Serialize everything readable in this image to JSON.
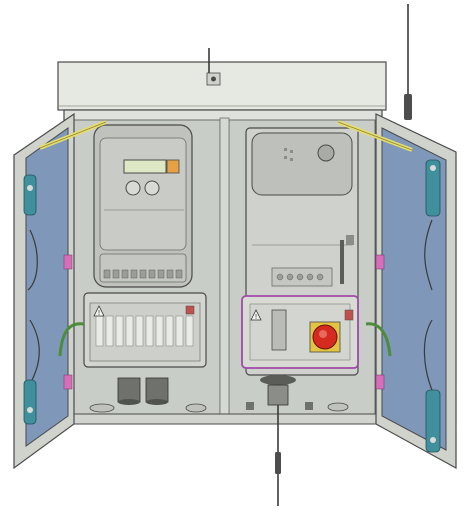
{
  "title": "",
  "warning_symbol": "!",
  "colors": {
    "background": "#ffffff",
    "cabinet_body": "#dfe2dc",
    "cabinet_roof": "#e6e8e2",
    "cabinet_interior": "#c9cdc8",
    "door_panel": "#7f97b8",
    "door_frame": "#cfd3cc",
    "outline": "#4a4a4a",
    "hinge_teal": "#3f8f9c",
    "strap_yellow": "#e6dd6a",
    "strap_green": "#4d8c3a",
    "emergency_red": "#d42a1f",
    "emergency_yellow": "#e2c440",
    "terminal_purple": "#a04aa8"
  },
  "components": {
    "left_bay": "electricity-meter-with-terminal-block",
    "right_bay": "control-module-with-emergency-stop",
    "antennas": [
      "top-right-antenna",
      "bottom-antenna",
      "roof-antenna-stub"
    ],
    "icons": [
      "warning-triangle-icon",
      "emergency-stop-button",
      "cable-gland",
      "door-hinge"
    ]
  }
}
